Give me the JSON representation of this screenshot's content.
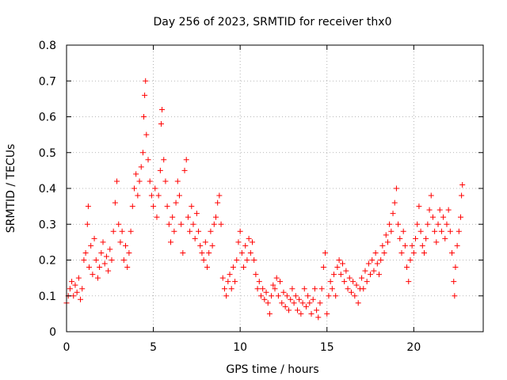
{
  "chart_data": {
    "type": "scatter",
    "title": "Day 256 of 2023, SRMTID for receiver thx0",
    "xlabel": "GPS time / hours",
    "ylabel": "SRMTID / TECUs",
    "xlim": [
      0,
      24
    ],
    "ylim": [
      0,
      0.8
    ],
    "xticks": [
      0,
      5,
      10,
      15,
      20
    ],
    "xtick_labels": [
      "0",
      "5",
      "10",
      "15",
      "20"
    ],
    "yticks": [
      0,
      0.1,
      0.2,
      0.3,
      0.4,
      0.5,
      0.6,
      0.7,
      0.8
    ],
    "ytick_labels": [
      "0",
      "0.1",
      "0.2",
      "0.3",
      "0.4",
      "0.5",
      "0.6",
      "0.7",
      "0.8"
    ],
    "grid": true,
    "marker": "+",
    "marker_color": "#ff0000",
    "series": [
      {
        "name": "SRMTID",
        "points": [
          [
            0.0,
            0.08
          ],
          [
            0.1,
            0.1
          ],
          [
            0.2,
            0.12
          ],
          [
            0.3,
            0.14
          ],
          [
            0.4,
            0.1
          ],
          [
            0.5,
            0.13
          ],
          [
            0.6,
            0.11
          ],
          [
            0.7,
            0.15
          ],
          [
            0.8,
            0.09
          ],
          [
            0.9,
            0.12
          ],
          [
            1.0,
            0.2
          ],
          [
            1.1,
            0.22
          ],
          [
            1.2,
            0.3
          ],
          [
            1.25,
            0.35
          ],
          [
            1.3,
            0.18
          ],
          [
            1.4,
            0.24
          ],
          [
            1.5,
            0.16
          ],
          [
            1.6,
            0.26
          ],
          [
            1.7,
            0.2
          ],
          [
            1.8,
            0.15
          ],
          [
            1.9,
            0.18
          ],
          [
            2.0,
            0.22
          ],
          [
            2.1,
            0.25
          ],
          [
            2.2,
            0.19
          ],
          [
            2.3,
            0.21
          ],
          [
            2.4,
            0.17
          ],
          [
            2.5,
            0.23
          ],
          [
            2.6,
            0.2
          ],
          [
            2.7,
            0.28
          ],
          [
            2.8,
            0.36
          ],
          [
            2.9,
            0.42
          ],
          [
            3.0,
            0.3
          ],
          [
            3.1,
            0.25
          ],
          [
            3.2,
            0.28
          ],
          [
            3.3,
            0.2
          ],
          [
            3.4,
            0.24
          ],
          [
            3.5,
            0.18
          ],
          [
            3.6,
            0.22
          ],
          [
            3.7,
            0.28
          ],
          [
            3.8,
            0.35
          ],
          [
            3.9,
            0.4
          ],
          [
            4.0,
            0.44
          ],
          [
            4.1,
            0.38
          ],
          [
            4.2,
            0.42
          ],
          [
            4.3,
            0.46
          ],
          [
            4.4,
            0.5
          ],
          [
            4.45,
            0.6
          ],
          [
            4.5,
            0.66
          ],
          [
            4.55,
            0.7
          ],
          [
            4.6,
            0.55
          ],
          [
            4.7,
            0.48
          ],
          [
            4.8,
            0.42
          ],
          [
            4.9,
            0.38
          ],
          [
            5.0,
            0.35
          ],
          [
            5.1,
            0.4
          ],
          [
            5.2,
            0.32
          ],
          [
            5.3,
            0.38
          ],
          [
            5.4,
            0.45
          ],
          [
            5.45,
            0.58
          ],
          [
            5.5,
            0.62
          ],
          [
            5.6,
            0.48
          ],
          [
            5.7,
            0.42
          ],
          [
            5.8,
            0.35
          ],
          [
            5.9,
            0.3
          ],
          [
            6.0,
            0.25
          ],
          [
            6.1,
            0.32
          ],
          [
            6.2,
            0.28
          ],
          [
            6.3,
            0.36
          ],
          [
            6.4,
            0.42
          ],
          [
            6.5,
            0.38
          ],
          [
            6.6,
            0.3
          ],
          [
            6.7,
            0.22
          ],
          [
            6.8,
            0.45
          ],
          [
            6.9,
            0.48
          ],
          [
            7.0,
            0.32
          ],
          [
            7.1,
            0.28
          ],
          [
            7.2,
            0.35
          ],
          [
            7.3,
            0.3
          ],
          [
            7.4,
            0.26
          ],
          [
            7.5,
            0.33
          ],
          [
            7.6,
            0.28
          ],
          [
            7.7,
            0.24
          ],
          [
            7.8,
            0.22
          ],
          [
            7.9,
            0.2
          ],
          [
            8.0,
            0.25
          ],
          [
            8.1,
            0.18
          ],
          [
            8.2,
            0.22
          ],
          [
            8.3,
            0.28
          ],
          [
            8.4,
            0.24
          ],
          [
            8.5,
            0.3
          ],
          [
            8.6,
            0.32
          ],
          [
            8.7,
            0.36
          ],
          [
            8.8,
            0.38
          ],
          [
            8.9,
            0.3
          ],
          [
            9.0,
            0.15
          ],
          [
            9.1,
            0.12
          ],
          [
            9.2,
            0.1
          ],
          [
            9.3,
            0.14
          ],
          [
            9.4,
            0.16
          ],
          [
            9.5,
            0.12
          ],
          [
            9.6,
            0.18
          ],
          [
            9.7,
            0.14
          ],
          [
            9.8,
            0.2
          ],
          [
            9.9,
            0.25
          ],
          [
            10.0,
            0.28
          ],
          [
            10.1,
            0.22
          ],
          [
            10.2,
            0.18
          ],
          [
            10.3,
            0.24
          ],
          [
            10.4,
            0.2
          ],
          [
            10.5,
            0.26
          ],
          [
            10.6,
            0.22
          ],
          [
            10.7,
            0.25
          ],
          [
            10.8,
            0.2
          ],
          [
            10.9,
            0.16
          ],
          [
            11.0,
            0.12
          ],
          [
            11.1,
            0.14
          ],
          [
            11.2,
            0.1
          ],
          [
            11.3,
            0.12
          ],
          [
            11.4,
            0.09
          ],
          [
            11.5,
            0.11
          ],
          [
            11.6,
            0.08
          ],
          [
            11.7,
            0.05
          ],
          [
            11.8,
            0.1
          ],
          [
            11.9,
            0.13
          ],
          [
            12.0,
            0.12
          ],
          [
            12.1,
            0.15
          ],
          [
            12.2,
            0.1
          ],
          [
            12.3,
            0.14
          ],
          [
            12.4,
            0.08
          ],
          [
            12.5,
            0.11
          ],
          [
            12.6,
            0.07
          ],
          [
            12.7,
            0.1
          ],
          [
            12.8,
            0.06
          ],
          [
            12.9,
            0.09
          ],
          [
            13.0,
            0.12
          ],
          [
            13.1,
            0.08
          ],
          [
            13.2,
            0.1
          ],
          [
            13.3,
            0.06
          ],
          [
            13.4,
            0.09
          ],
          [
            13.5,
            0.05
          ],
          [
            13.6,
            0.08
          ],
          [
            13.7,
            0.12
          ],
          [
            13.8,
            0.07
          ],
          [
            13.9,
            0.1
          ],
          [
            14.0,
            0.08
          ],
          [
            14.1,
            0.05
          ],
          [
            14.2,
            0.09
          ],
          [
            14.3,
            0.12
          ],
          [
            14.4,
            0.06
          ],
          [
            14.5,
            0.04
          ],
          [
            14.6,
            0.08
          ],
          [
            14.7,
            0.12
          ],
          [
            14.8,
            0.18
          ],
          [
            14.9,
            0.22
          ],
          [
            15.0,
            0.05
          ],
          [
            15.1,
            0.1
          ],
          [
            15.2,
            0.14
          ],
          [
            15.3,
            0.12
          ],
          [
            15.4,
            0.16
          ],
          [
            15.5,
            0.1
          ],
          [
            15.6,
            0.18
          ],
          [
            15.7,
            0.2
          ],
          [
            15.8,
            0.16
          ],
          [
            15.9,
            0.19
          ],
          [
            16.0,
            0.14
          ],
          [
            16.1,
            0.17
          ],
          [
            16.2,
            0.12
          ],
          [
            16.3,
            0.15
          ],
          [
            16.4,
            0.11
          ],
          [
            16.5,
            0.14
          ],
          [
            16.6,
            0.1
          ],
          [
            16.7,
            0.13
          ],
          [
            16.8,
            0.08
          ],
          [
            16.9,
            0.12
          ],
          [
            17.0,
            0.15
          ],
          [
            17.1,
            0.12
          ],
          [
            17.2,
            0.17
          ],
          [
            17.3,
            0.14
          ],
          [
            17.4,
            0.19
          ],
          [
            17.5,
            0.16
          ],
          [
            17.6,
            0.2
          ],
          [
            17.7,
            0.17
          ],
          [
            17.8,
            0.22
          ],
          [
            17.9,
            0.19
          ],
          [
            18.0,
            0.16
          ],
          [
            18.1,
            0.2
          ],
          [
            18.2,
            0.24
          ],
          [
            18.3,
            0.22
          ],
          [
            18.4,
            0.27
          ],
          [
            18.5,
            0.25
          ],
          [
            18.6,
            0.3
          ],
          [
            18.7,
            0.28
          ],
          [
            18.8,
            0.33
          ],
          [
            18.9,
            0.36
          ],
          [
            19.0,
            0.4
          ],
          [
            19.1,
            0.3
          ],
          [
            19.2,
            0.26
          ],
          [
            19.3,
            0.22
          ],
          [
            19.4,
            0.28
          ],
          [
            19.5,
            0.24
          ],
          [
            19.6,
            0.18
          ],
          [
            19.7,
            0.14
          ],
          [
            19.8,
            0.2
          ],
          [
            19.9,
            0.24
          ],
          [
            20.0,
            0.22
          ],
          [
            20.1,
            0.26
          ],
          [
            20.2,
            0.3
          ],
          [
            20.3,
            0.35
          ],
          [
            20.4,
            0.28
          ],
          [
            20.5,
            0.24
          ],
          [
            20.6,
            0.22
          ],
          [
            20.7,
            0.26
          ],
          [
            20.8,
            0.3
          ],
          [
            20.9,
            0.34
          ],
          [
            21.0,
            0.38
          ],
          [
            21.1,
            0.32
          ],
          [
            21.2,
            0.28
          ],
          [
            21.3,
            0.25
          ],
          [
            21.4,
            0.3
          ],
          [
            21.5,
            0.34
          ],
          [
            21.6,
            0.28
          ],
          [
            21.7,
            0.32
          ],
          [
            21.8,
            0.26
          ],
          [
            21.9,
            0.3
          ],
          [
            22.0,
            0.34
          ],
          [
            22.1,
            0.28
          ],
          [
            22.2,
            0.22
          ],
          [
            22.3,
            0.14
          ],
          [
            22.35,
            0.1
          ],
          [
            22.4,
            0.18
          ],
          [
            22.5,
            0.24
          ],
          [
            22.6,
            0.28
          ],
          [
            22.7,
            0.32
          ],
          [
            22.75,
            0.38
          ],
          [
            22.8,
            0.41
          ]
        ]
      }
    ]
  }
}
